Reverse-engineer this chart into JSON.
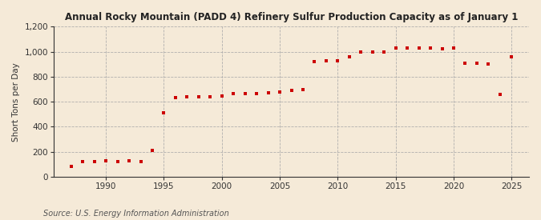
{
  "title": "Annual Rocky Mountain (PADD 4) Refinery Sulfur Production Capacity as of January 1",
  "ylabel": "Short Tons per Day",
  "source": "Source: U.S. Energy Information Administration",
  "background_color": "#f5ead8",
  "marker_color": "#cc0000",
  "grid_color": "#aaaaaa",
  "years": [
    1987,
    1988,
    1989,
    1990,
    1991,
    1992,
    1993,
    1994,
    1995,
    1996,
    1997,
    1998,
    1999,
    2000,
    2001,
    2002,
    2003,
    2004,
    2005,
    2006,
    2007,
    2008,
    2009,
    2010,
    2011,
    2012,
    2013,
    2014,
    2015,
    2016,
    2017,
    2018,
    2019,
    2020,
    2021,
    2022,
    2023,
    2024,
    2025
  ],
  "values": [
    85,
    120,
    125,
    130,
    125,
    130,
    120,
    210,
    510,
    635,
    640,
    640,
    640,
    645,
    665,
    665,
    665,
    670,
    680,
    690,
    700,
    920,
    925,
    930,
    960,
    1000,
    1000,
    1000,
    1030,
    1030,
    1030,
    1030,
    1025,
    1030,
    910,
    910,
    900,
    660,
    960
  ],
  "ylim": [
    0,
    1200
  ],
  "yticks": [
    0,
    200,
    400,
    600,
    800,
    1000,
    1200
  ],
  "xlim": [
    1985.5,
    2026.5
  ],
  "xticks": [
    1990,
    1995,
    2000,
    2005,
    2010,
    2015,
    2020,
    2025
  ]
}
